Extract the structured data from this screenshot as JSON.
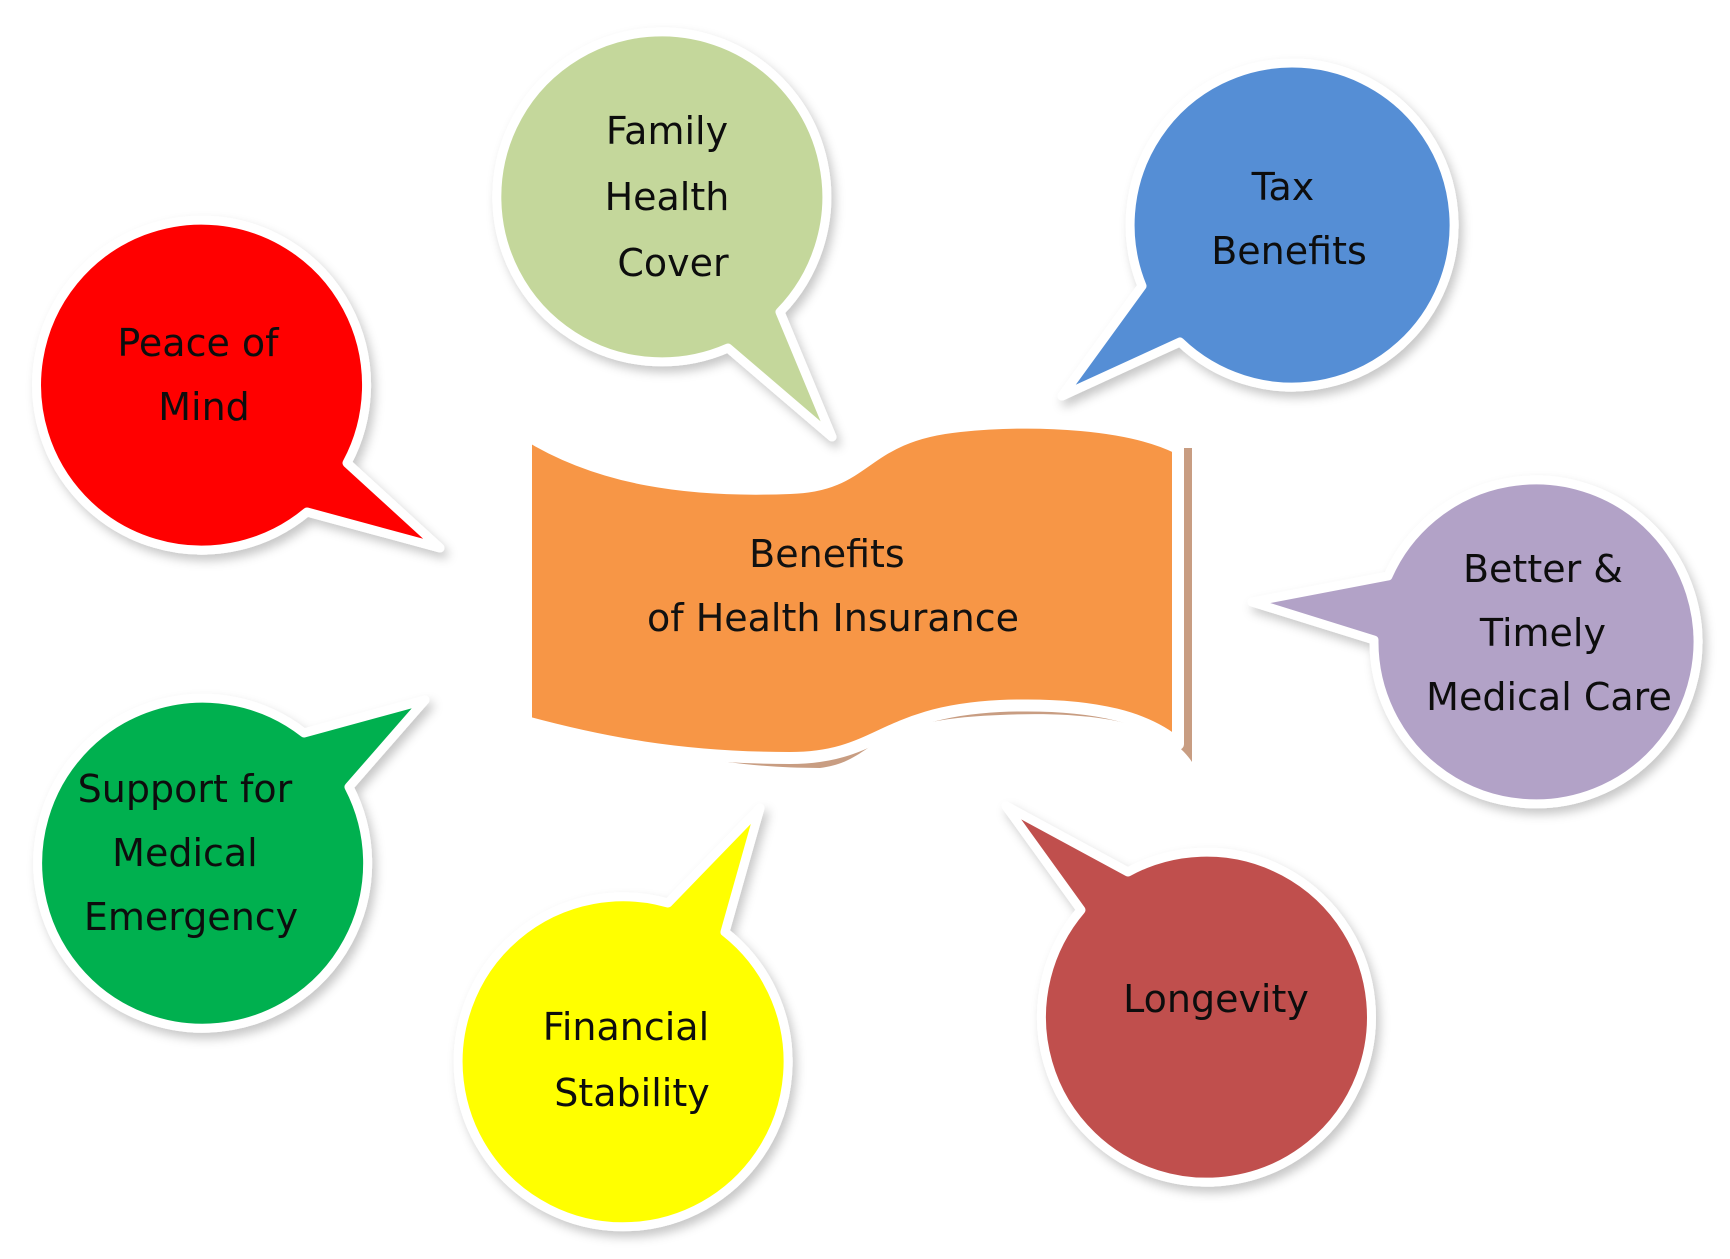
{
  "center": {
    "lines": [
      "Benefits",
      "of Health Insurance"
    ],
    "color": "#F79646"
  },
  "bubbles": [
    {
      "id": "family-health-cover",
      "lines": [
        "Family",
        "Health",
        "Cover"
      ],
      "color": "#C4D79B"
    },
    {
      "id": "tax-benefits",
      "lines": [
        "Tax",
        "Benefits"
      ],
      "color": "#558ED5"
    },
    {
      "id": "peace-of-mind",
      "lines": [
        "Peace of",
        "Mind"
      ],
      "color": "#FF0000"
    },
    {
      "id": "better-timely-medical-care",
      "lines": [
        "Better &",
        "Timely",
        "Medical Care"
      ],
      "color": "#B2A2C7"
    },
    {
      "id": "support-for-medical-emergency",
      "lines": [
        "Support for",
        "Medical",
        "Emergency"
      ],
      "color": "#00B050"
    },
    {
      "id": "financial-stability",
      "lines": [
        "Financial",
        "Stability"
      ],
      "color": "#FFFF00"
    },
    {
      "id": "longevity",
      "lines": [
        "Longevity"
      ],
      "color": "#C0504D"
    }
  ]
}
